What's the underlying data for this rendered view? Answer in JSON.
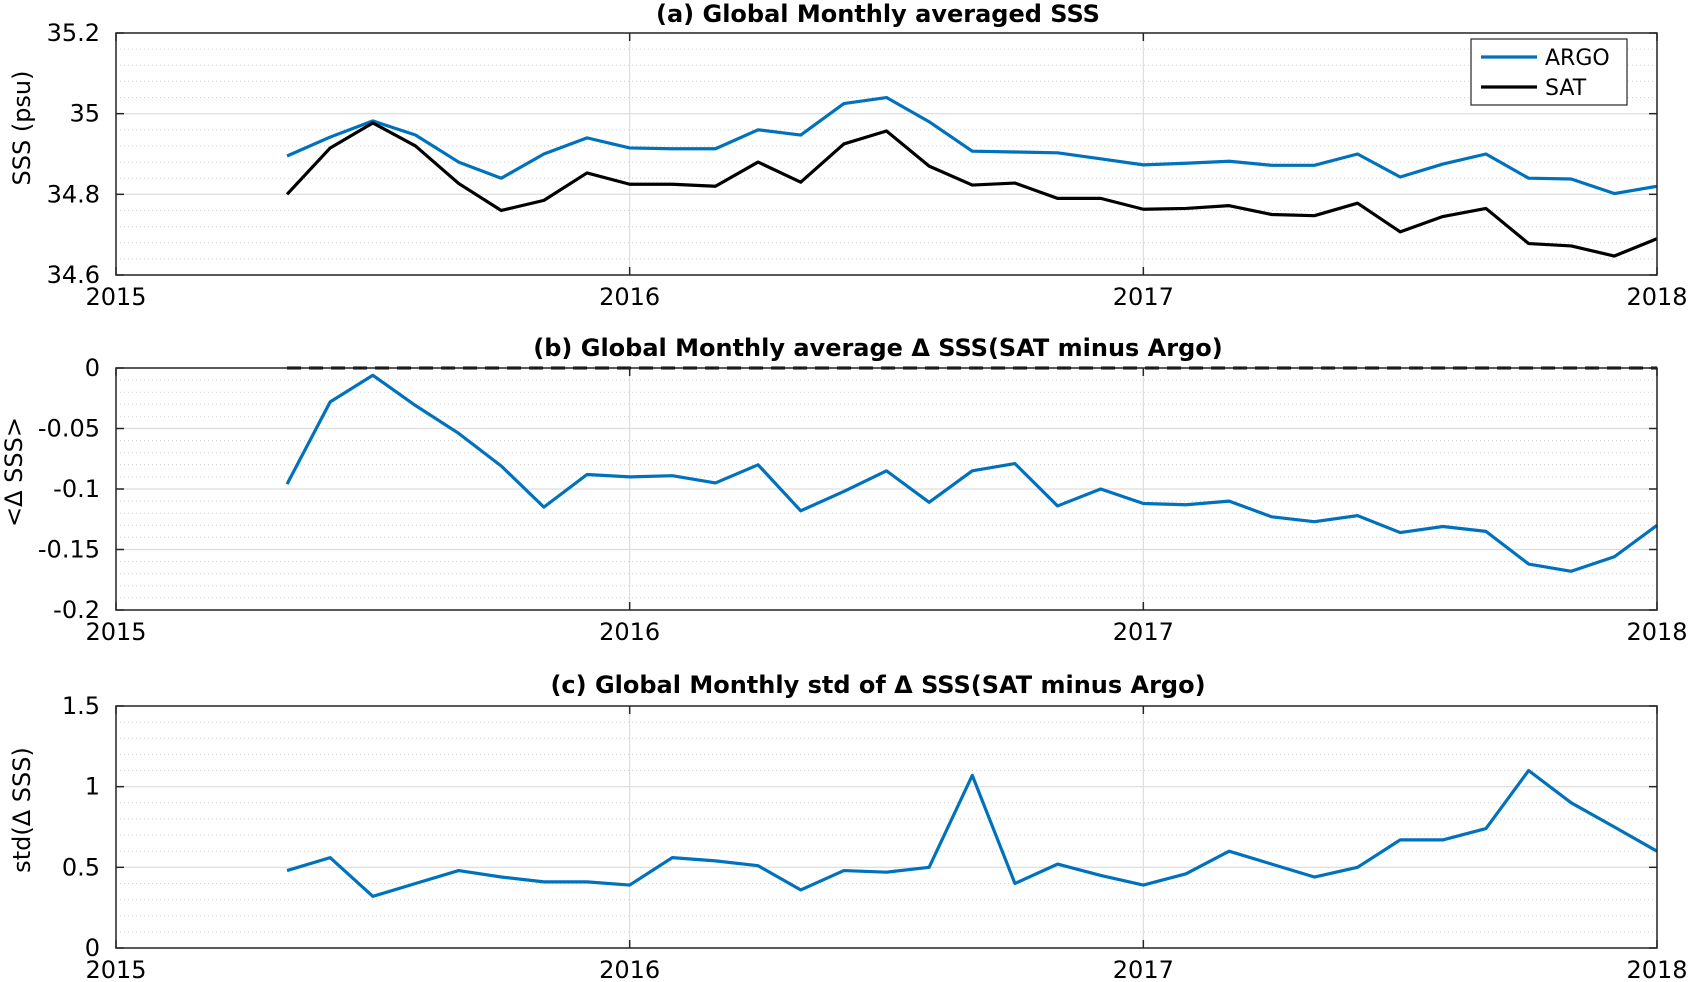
{
  "chart_data": [
    {
      "id": "a",
      "type": "line",
      "title": "(a) Global Monthly averaged SSS",
      "xlabel": "",
      "ylabel": "SSS (psu)",
      "xlim": [
        2015,
        2018
      ],
      "ylim": [
        34.6,
        35.2
      ],
      "xticks": [
        2015,
        2016,
        2017,
        2018
      ],
      "yticks": [
        34.6,
        34.8,
        35,
        35.2
      ],
      "ytick_labels": [
        "34.6",
        "34.8",
        "35",
        "35.2"
      ],
      "grid": true,
      "minor_grid": true,
      "legend": "top-right",
      "x": [
        2015.333,
        2015.417,
        2015.5,
        2015.583,
        2015.667,
        2015.75,
        2015.833,
        2015.917,
        2016.0,
        2016.083,
        2016.167,
        2016.25,
        2016.333,
        2016.417,
        2016.5,
        2016.583,
        2016.667,
        2016.75,
        2016.833,
        2016.917,
        2017.0,
        2017.083,
        2017.167,
        2017.25,
        2017.333,
        2017.417,
        2017.5,
        2017.583,
        2017.667,
        2017.75,
        2017.833,
        2017.917,
        2018.0
      ],
      "series": [
        {
          "name": "ARGO",
          "color": "#0072BD",
          "values": [
            34.895,
            34.942,
            34.982,
            34.947,
            34.88,
            34.84,
            34.9,
            34.94,
            34.915,
            34.913,
            34.913,
            34.96,
            34.947,
            35.025,
            35.04,
            34.98,
            34.907,
            34.905,
            34.903,
            34.888,
            34.873,
            34.877,
            34.882,
            34.872,
            34.872,
            34.9,
            34.843,
            34.875,
            34.9,
            34.84,
            34.838,
            34.802,
            34.82
          ]
        },
        {
          "name": "SAT",
          "color": "#000000",
          "values": [
            34.8,
            34.915,
            34.977,
            34.92,
            34.827,
            34.76,
            34.785,
            34.853,
            34.825,
            34.825,
            34.82,
            34.88,
            34.83,
            34.925,
            34.957,
            34.87,
            34.823,
            34.828,
            34.79,
            34.79,
            34.763,
            34.765,
            34.772,
            34.75,
            34.747,
            34.778,
            34.707,
            34.745,
            34.765,
            34.678,
            34.672,
            34.647,
            34.69
          ]
        }
      ]
    },
    {
      "id": "b",
      "type": "line",
      "title": "(b) Global Monthly average Δ SSS(SAT minus Argo)",
      "xlabel": "",
      "ylabel": "<Δ SSS>",
      "xlim": [
        2015,
        2018
      ],
      "ylim": [
        -0.2,
        0
      ],
      "xticks": [
        2015,
        2016,
        2017,
        2018
      ],
      "yticks": [
        -0.2,
        -0.15,
        -0.1,
        -0.05,
        0
      ],
      "ytick_labels": [
        "-0.2",
        "-0.15",
        "-0.1",
        "-0.05",
        "0"
      ],
      "grid": true,
      "minor_grid": true,
      "reference_line": {
        "y": 0,
        "style": "dashed",
        "color": "#000000",
        "from": 2015.333,
        "to": 2018.0
      },
      "x": [
        2015.333,
        2015.417,
        2015.5,
        2015.583,
        2015.667,
        2015.75,
        2015.833,
        2015.917,
        2016.0,
        2016.083,
        2016.167,
        2016.25,
        2016.333,
        2016.417,
        2016.5,
        2016.583,
        2016.667,
        2016.75,
        2016.833,
        2016.917,
        2017.0,
        2017.083,
        2017.167,
        2017.25,
        2017.333,
        2017.417,
        2017.5,
        2017.583,
        2017.667,
        2017.75,
        2017.833,
        2017.917,
        2018.0
      ],
      "series": [
        {
          "color": "#0072BD",
          "values": [
            -0.096,
            -0.028,
            -0.006,
            -0.031,
            -0.054,
            -0.081,
            -0.115,
            -0.088,
            -0.09,
            -0.089,
            -0.095,
            -0.08,
            -0.118,
            -0.102,
            -0.085,
            -0.111,
            -0.085,
            -0.079,
            -0.114,
            -0.1,
            -0.112,
            -0.113,
            -0.11,
            -0.123,
            -0.127,
            -0.122,
            -0.136,
            -0.131,
            -0.135,
            -0.162,
            -0.168,
            -0.156,
            -0.13
          ]
        }
      ]
    },
    {
      "id": "c",
      "type": "line",
      "title": "(c) Global Monthly std of Δ SSS(SAT minus Argo)",
      "xlabel": "",
      "ylabel": "std(Δ SSS)",
      "xlim": [
        2015,
        2018
      ],
      "ylim": [
        0,
        1.5
      ],
      "xticks": [
        2015,
        2016,
        2017,
        2018
      ],
      "yticks": [
        0,
        0.5,
        1,
        1.5
      ],
      "ytick_labels": [
        "0",
        "0.5",
        "1",
        "1.5"
      ],
      "grid": true,
      "minor_grid": true,
      "x": [
        2015.333,
        2015.417,
        2015.5,
        2015.583,
        2015.667,
        2015.75,
        2015.833,
        2015.917,
        2016.0,
        2016.083,
        2016.167,
        2016.25,
        2016.333,
        2016.417,
        2016.5,
        2016.583,
        2016.667,
        2016.75,
        2016.833,
        2016.917,
        2017.0,
        2017.083,
        2017.167,
        2017.25,
        2017.333,
        2017.417,
        2017.5,
        2017.583,
        2017.667,
        2017.75,
        2017.833,
        2017.917,
        2018.0
      ],
      "series": [
        {
          "color": "#0072BD",
          "values": [
            0.48,
            0.56,
            0.32,
            0.4,
            0.48,
            0.44,
            0.41,
            0.41,
            0.39,
            0.56,
            0.54,
            0.51,
            0.36,
            0.48,
            0.47,
            0.5,
            1.07,
            0.4,
            0.52,
            0.45,
            0.39,
            0.46,
            0.6,
            0.52,
            0.44,
            0.5,
            0.67,
            0.67,
            0.74,
            1.1,
            0.9,
            0.75,
            0.6
          ]
        }
      ]
    }
  ]
}
